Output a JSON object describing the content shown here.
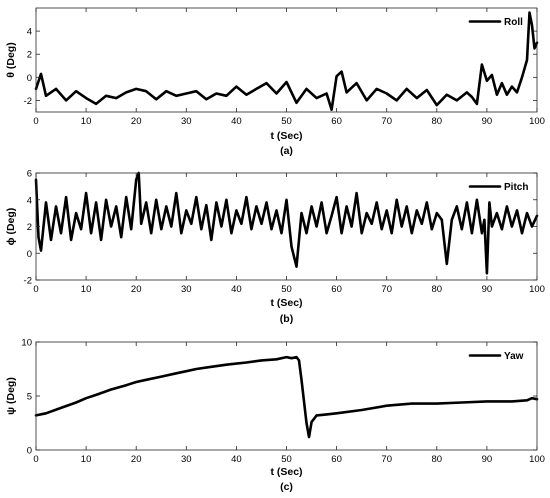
{
  "chart_data": [
    {
      "type": "line",
      "caption": "(a)",
      "xlabel": "t (Sec)",
      "ylabel": "θ (Deg)",
      "xlim": [
        0,
        100
      ],
      "ylim": [
        -3,
        6
      ],
      "xticks": [
        0,
        10,
        20,
        30,
        40,
        50,
        60,
        70,
        80,
        90,
        100
      ],
      "yticks": [
        -2,
        0,
        2,
        4
      ],
      "legend": "top-right",
      "grid": false,
      "series": [
        {
          "name": "Roll",
          "x": [
            0,
            1,
            2,
            4,
            6,
            8,
            10,
            12,
            14,
            16,
            18,
            20,
            22,
            24,
            26,
            28,
            30,
            32,
            34,
            36,
            38,
            40,
            42,
            44,
            46,
            48,
            50,
            52,
            54,
            56,
            58,
            59,
            60,
            61,
            62,
            64,
            66,
            68,
            70,
            72,
            74,
            76,
            78,
            80,
            82,
            84,
            86,
            87,
            88,
            89,
            90,
            91,
            92,
            93,
            94,
            95,
            96,
            97,
            98,
            98.5,
            99,
            99.5,
            100
          ],
          "y": [
            -1.0,
            0.3,
            -1.6,
            -1.0,
            -2.0,
            -1.2,
            -1.8,
            -2.3,
            -1.6,
            -1.8,
            -1.3,
            -1.0,
            -1.2,
            -1.9,
            -1.2,
            -1.6,
            -1.4,
            -1.2,
            -1.9,
            -1.4,
            -1.6,
            -0.8,
            -1.5,
            -1.0,
            -0.5,
            -1.4,
            -0.4,
            -2.2,
            -1.0,
            -1.8,
            -1.4,
            -2.8,
            0.1,
            0.5,
            -1.3,
            -0.5,
            -2.0,
            -1.0,
            -1.4,
            -2.0,
            -1.0,
            -1.8,
            -1.1,
            -2.4,
            -1.5,
            -2.0,
            -1.3,
            -1.7,
            -2.3,
            1.1,
            -0.3,
            0.2,
            -1.5,
            -0.5,
            -1.5,
            -0.8,
            -1.3,
            0.0,
            1.5,
            5.6,
            4.5,
            2.5,
            3.0
          ]
        }
      ]
    },
    {
      "type": "line",
      "caption": "(b)",
      "xlabel": "t (Sec)",
      "ylabel": "ϕ (Deg)",
      "xlim": [
        0,
        100
      ],
      "ylim": [
        -2,
        6
      ],
      "xticks": [
        0,
        10,
        20,
        30,
        40,
        50,
        60,
        70,
        80,
        90,
        100
      ],
      "yticks": [
        -2,
        0,
        2,
        4,
        6
      ],
      "legend": "top-right",
      "grid": false,
      "series": [
        {
          "name": "Pitch",
          "x": [
            0,
            0.5,
            1,
            2,
            3,
            4,
            5,
            6,
            7,
            8,
            9,
            10,
            11,
            12,
            13,
            14,
            15,
            16,
            17,
            18,
            19,
            20,
            20.5,
            21,
            22,
            23,
            24,
            25,
            26,
            27,
            28,
            29,
            30,
            31,
            32,
            33,
            34,
            35,
            36,
            37,
            38,
            39,
            40,
            41,
            42,
            43,
            44,
            45,
            46,
            47,
            48,
            49,
            50,
            51,
            52,
            53,
            54,
            55,
            56,
            57,
            58,
            59,
            60,
            61,
            62,
            63,
            64,
            65,
            66,
            67,
            68,
            69,
            70,
            71,
            72,
            73,
            74,
            75,
            76,
            77,
            78,
            79,
            80,
            81,
            82,
            83,
            84,
            85,
            86,
            87,
            88,
            89,
            89.5,
            90,
            90.5,
            91,
            92,
            93,
            94,
            95,
            96,
            97,
            98,
            99,
            100
          ],
          "y": [
            5.5,
            1.2,
            0.2,
            3.8,
            1.0,
            3.5,
            1.5,
            4.2,
            1.0,
            3.0,
            1.8,
            4.5,
            1.5,
            3.8,
            1.0,
            4.0,
            2.0,
            3.5,
            1.2,
            4.2,
            1.8,
            5.5,
            6.0,
            2.2,
            3.8,
            1.5,
            4.0,
            1.8,
            3.5,
            2.0,
            4.5,
            1.5,
            3.2,
            2.2,
            4.2,
            1.8,
            3.6,
            1.0,
            3.8,
            2.0,
            4.0,
            1.5,
            3.2,
            2.2,
            4.2,
            1.8,
            3.5,
            2.2,
            3.8,
            1.8,
            3.2,
            1.5,
            4.0,
            0.5,
            -1.0,
            3.0,
            1.5,
            3.5,
            2.0,
            3.8,
            1.5,
            2.8,
            4.2,
            1.5,
            3.5,
            2.0,
            4.5,
            1.5,
            3.0,
            2.2,
            3.8,
            1.8,
            3.2,
            1.5,
            4.0,
            2.0,
            3.5,
            1.5,
            3.2,
            2.2,
            3.8,
            1.8,
            3.0,
            2.5,
            -0.8,
            2.5,
            3.5,
            1.8,
            3.8,
            1.5,
            4.0,
            1.5,
            2.5,
            -1.5,
            3.8,
            2.0,
            3.0,
            1.8,
            3.5,
            2.0,
            3.2,
            1.5,
            3.0,
            2.0,
            2.8
          ]
        }
      ]
    },
    {
      "type": "line",
      "caption": "(c)",
      "xlabel": "t (Sec)",
      "ylabel": "ψ (Deg)",
      "xlim": [
        0,
        100
      ],
      "ylim": [
        0,
        10
      ],
      "xticks": [
        0,
        10,
        20,
        30,
        40,
        50,
        60,
        70,
        80,
        90,
        100
      ],
      "yticks": [
        0,
        5,
        10
      ],
      "legend": "top-right",
      "grid": false,
      "series": [
        {
          "name": "Yaw",
          "x": [
            0,
            2,
            5,
            8,
            10,
            12,
            15,
            18,
            20,
            22,
            25,
            28,
            30,
            32,
            35,
            38,
            40,
            42,
            45,
            48,
            50,
            51,
            52,
            52.5,
            53,
            53.5,
            54,
            54.5,
            55,
            56,
            58,
            60,
            65,
            70,
            75,
            80,
            85,
            90,
            95,
            98,
            99,
            100
          ],
          "y": [
            3.2,
            3.4,
            3.9,
            4.4,
            4.8,
            5.1,
            5.6,
            6.0,
            6.3,
            6.5,
            6.8,
            7.1,
            7.3,
            7.5,
            7.7,
            7.9,
            8.0,
            8.1,
            8.3,
            8.4,
            8.6,
            8.5,
            8.6,
            8.3,
            6.5,
            4.5,
            2.5,
            1.2,
            2.6,
            3.2,
            3.3,
            3.4,
            3.7,
            4.1,
            4.3,
            4.3,
            4.4,
            4.5,
            4.5,
            4.6,
            4.8,
            4.7
          ]
        }
      ]
    }
  ]
}
